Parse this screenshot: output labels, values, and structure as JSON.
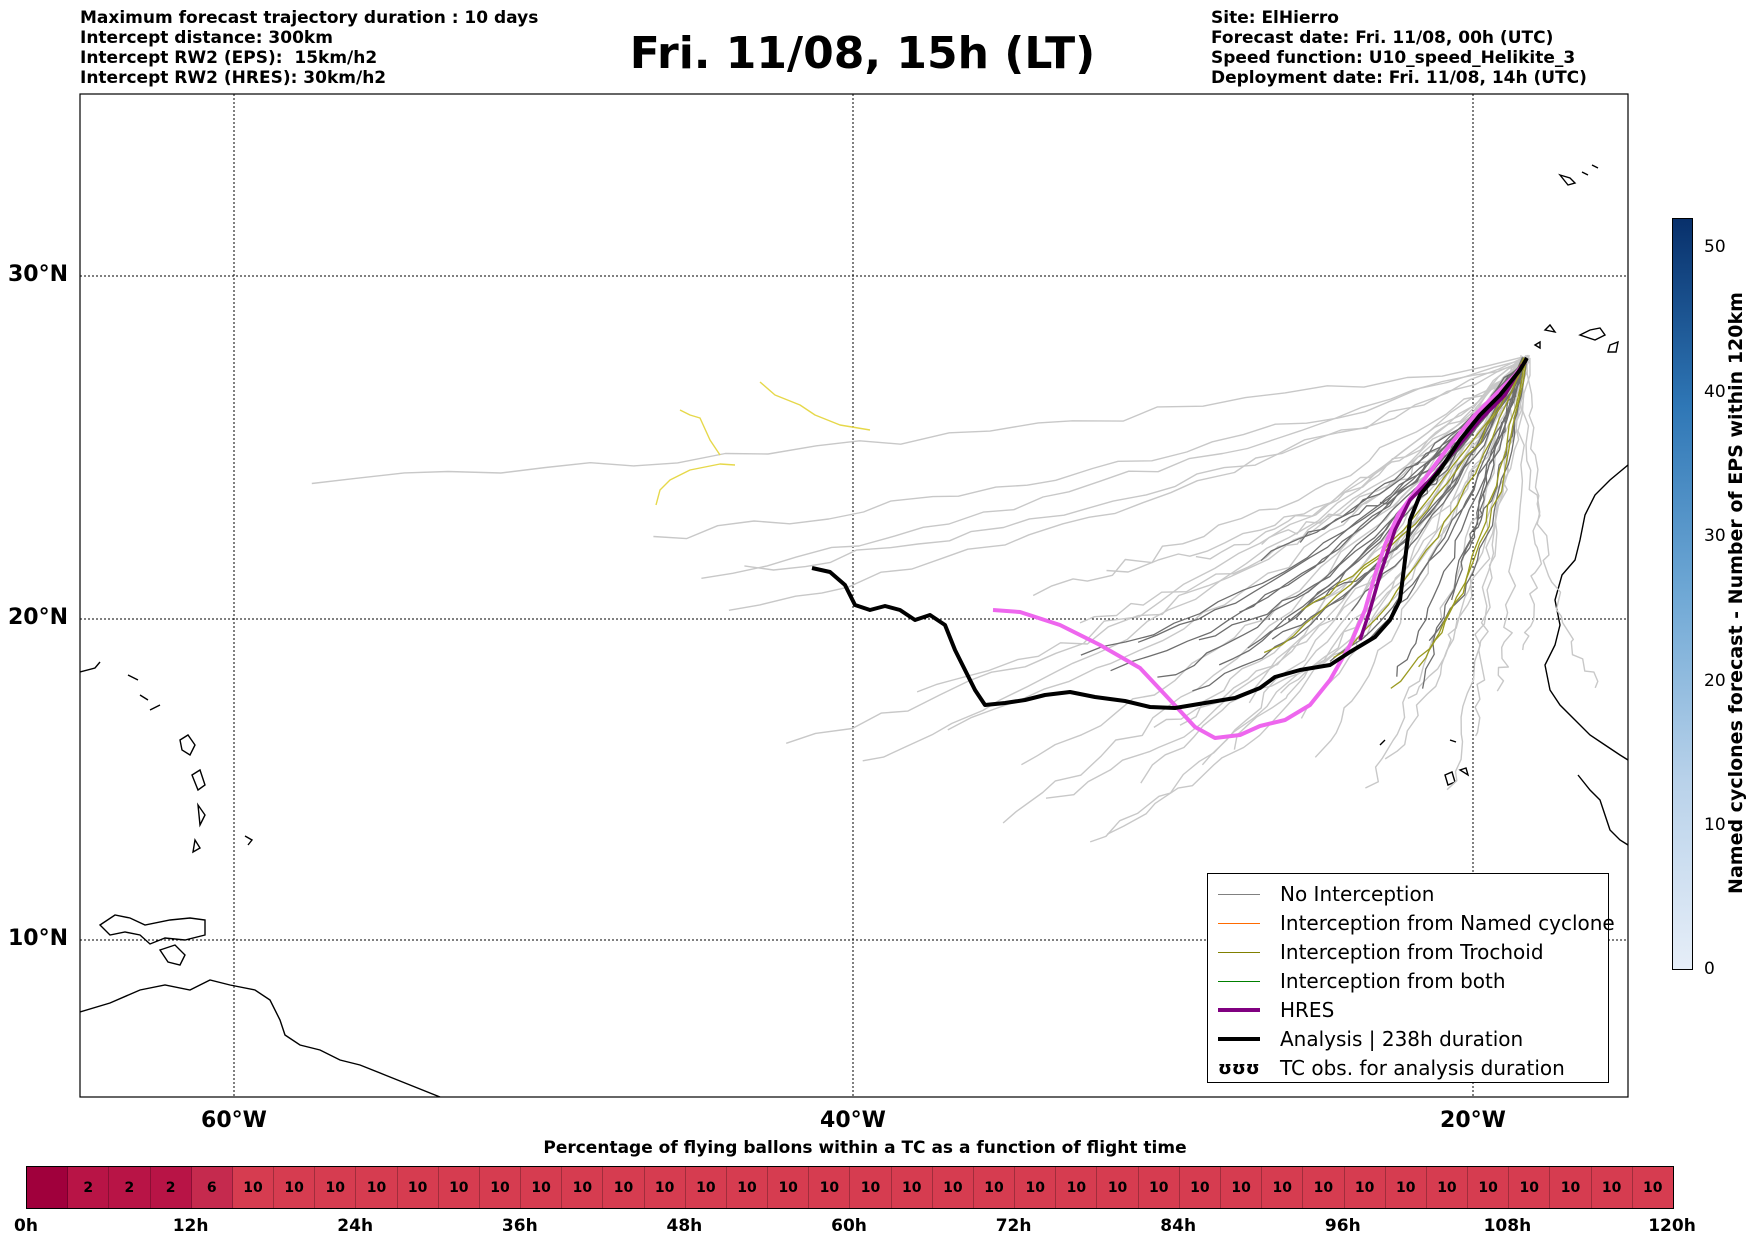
{
  "header_left": [
    "Maximum forecast trajectory duration : 10 days",
    "Intercept distance: 300km",
    "Intercept RW2 (EPS):  15km/h2",
    "Intercept RW2 (HRES): 30km/h2"
  ],
  "title": "Fri. 11/08, 15h (LT)",
  "header_right": [
    "Site: ElHierro",
    "Forecast date: Fri. 11/08, 00h (UTC)",
    "Speed function: U10_speed_Helikite_3",
    "Deployment date: Fri. 11/08, 14h (UTC)"
  ],
  "latitude_labels": [
    "30°N",
    "20°N",
    "10°N"
  ],
  "longitude_labels": [
    "60°W",
    "40°W",
    "20°W"
  ],
  "legend": [
    {
      "label": "No Interception",
      "color": "#808080",
      "width": 1.5
    },
    {
      "label": "Interception from Named cyclone",
      "color": "#ff6a00",
      "width": 1.5
    },
    {
      "label": "Interception from Trochoid",
      "color": "#808000",
      "width": 1.5
    },
    {
      "label": "Interception from both",
      "color": "#008000",
      "width": 1.5
    },
    {
      "label": "HRES",
      "color": "#800080",
      "width": 4
    },
    {
      "label": "Analysis | 238h duration",
      "color": "#000000",
      "width": 4
    },
    {
      "label": "TC obs. for analysis duration",
      "color": "#000000",
      "width": 0,
      "icon": "ʊʊʊ"
    }
  ],
  "colorbar": {
    "label": "Named cyclones forecast - Number of EPS within 120km",
    "ticks": [
      "0",
      "10",
      "20",
      "30",
      "40",
      "50"
    ],
    "range": [
      0,
      52
    ],
    "low_color": "#e6eef8",
    "high_color": "#08306b"
  },
  "time_bar": {
    "caption": "Percentage of flying ballons within a TC as a function of flight time",
    "cells": [
      "",
      "2",
      "2",
      "2",
      "6",
      "10",
      "10",
      "10",
      "10",
      "10",
      "10",
      "10",
      "10",
      "10",
      "10",
      "10",
      "10",
      "10",
      "10",
      "10",
      "10",
      "10",
      "10",
      "10",
      "10",
      "10",
      "10",
      "10",
      "10",
      "10",
      "10",
      "10",
      "10",
      "10",
      "10",
      "10",
      "10",
      "10",
      "10",
      "10"
    ],
    "time_labels": [
      "0h",
      "12h",
      "24h",
      "36h",
      "48h",
      "60h",
      "72h",
      "84h",
      "96h",
      "108h",
      "120h"
    ],
    "cell_colors": {
      "0": "#a0003c",
      "2": "#b81446",
      "6": "#c52a4e",
      "10": "#d63c50"
    }
  },
  "colors": {
    "eps_gray": "#c8c8c8",
    "eps_dark": "#6e6e6e",
    "trochoid": "#9a9a20",
    "yellow": "#e6d84a",
    "hres_main": "#ee66ee",
    "hres_dark": "#800080",
    "analysis": "#000000"
  }
}
